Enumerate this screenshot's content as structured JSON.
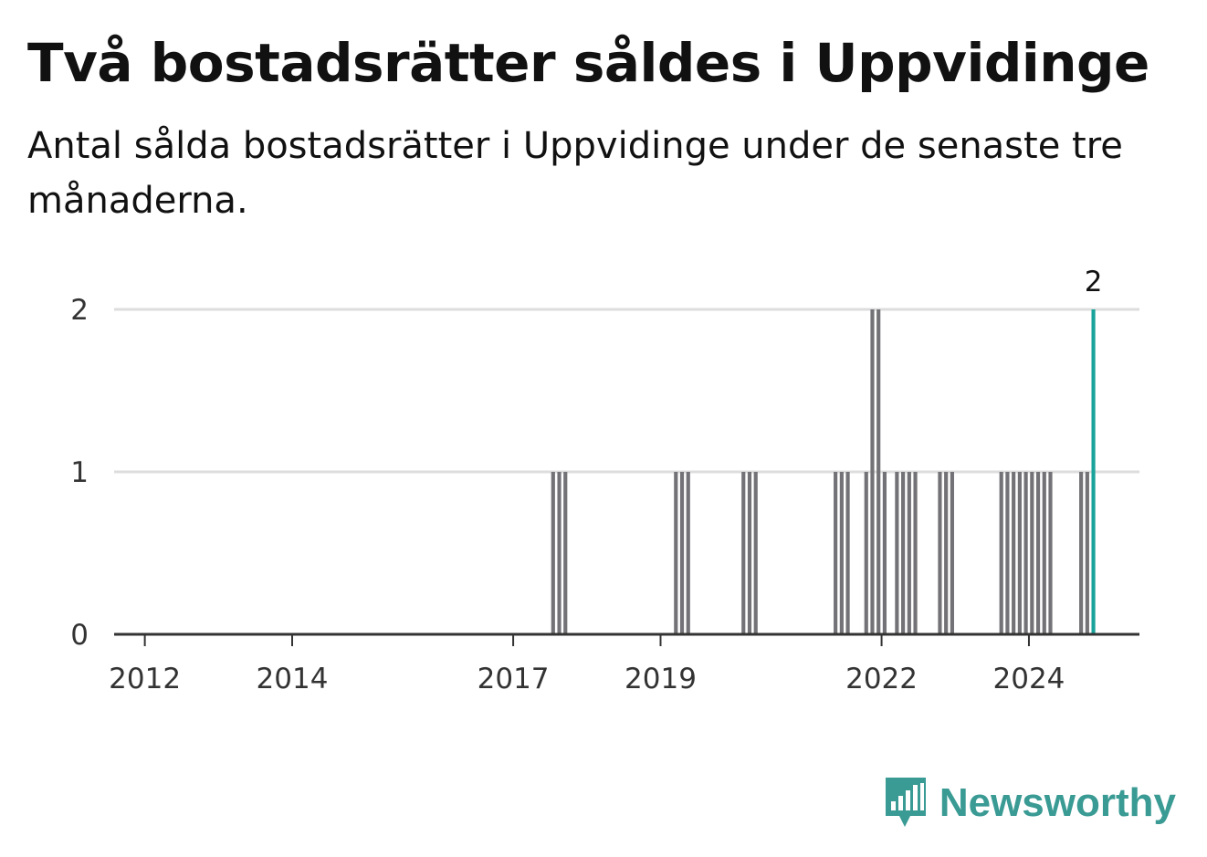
{
  "title": "Två bostadsrätter såldes i Uppvidinge",
  "subtitle": "Antal sålda bostadsrätter i Uppvidinge under de senaste tre månaderna.",
  "brand": {
    "name": "Newsworthy",
    "color": "#3a9a94",
    "icon": "bar-chart-speech-bubble-icon"
  },
  "colors": {
    "bar": "#737377",
    "highlight": "#1aa39a",
    "grid": "#dddddd",
    "axis": "#333333"
  },
  "chart_data": {
    "type": "bar",
    "title": "Två bostadsrätter såldes i Uppvidinge",
    "xlabel": "",
    "ylabel": "",
    "ylim": [
      0,
      2
    ],
    "y_ticks": [
      0,
      1,
      2
    ],
    "x_ticks": [
      "2012",
      "2014",
      "2017",
      "2019",
      "2022",
      "2024"
    ],
    "x_range": [
      "2011-08",
      "2025-07"
    ],
    "grid": "horizontal",
    "legend": "none",
    "series": [
      {
        "points": [
          {
            "period": "2017-07",
            "value": 1
          },
          {
            "period": "2017-08",
            "value": 1
          },
          {
            "period": "2017-09",
            "value": 1
          },
          {
            "period": "2019-03",
            "value": 1
          },
          {
            "period": "2019-04",
            "value": 1
          },
          {
            "period": "2019-05",
            "value": 1
          },
          {
            "period": "2020-02",
            "value": 1
          },
          {
            "period": "2020-03",
            "value": 1
          },
          {
            "period": "2020-04",
            "value": 1
          },
          {
            "period": "2021-05",
            "value": 1
          },
          {
            "period": "2021-06",
            "value": 1
          },
          {
            "period": "2021-07",
            "value": 1
          },
          {
            "period": "2021-10",
            "value": 1
          },
          {
            "period": "2021-11",
            "value": 2
          },
          {
            "period": "2021-12",
            "value": 2
          },
          {
            "period": "2022-01",
            "value": 1
          },
          {
            "period": "2022-03",
            "value": 1
          },
          {
            "period": "2022-04",
            "value": 1
          },
          {
            "period": "2022-05",
            "value": 1
          },
          {
            "period": "2022-06",
            "value": 1
          },
          {
            "period": "2022-10",
            "value": 1
          },
          {
            "period": "2022-11",
            "value": 1
          },
          {
            "period": "2022-12",
            "value": 1
          },
          {
            "period": "2023-08",
            "value": 1
          },
          {
            "period": "2023-09",
            "value": 1
          },
          {
            "period": "2023-10",
            "value": 1
          },
          {
            "period": "2023-11",
            "value": 1
          },
          {
            "period": "2023-12",
            "value": 1
          },
          {
            "period": "2024-01",
            "value": 1
          },
          {
            "period": "2024-02",
            "value": 1
          },
          {
            "period": "2024-03",
            "value": 1
          },
          {
            "period": "2024-04",
            "value": 1
          },
          {
            "period": "2024-09",
            "value": 1
          },
          {
            "period": "2024-10",
            "value": 1
          },
          {
            "period": "2024-11",
            "value": 2,
            "highlight": true,
            "label": "2"
          }
        ]
      }
    ]
  }
}
